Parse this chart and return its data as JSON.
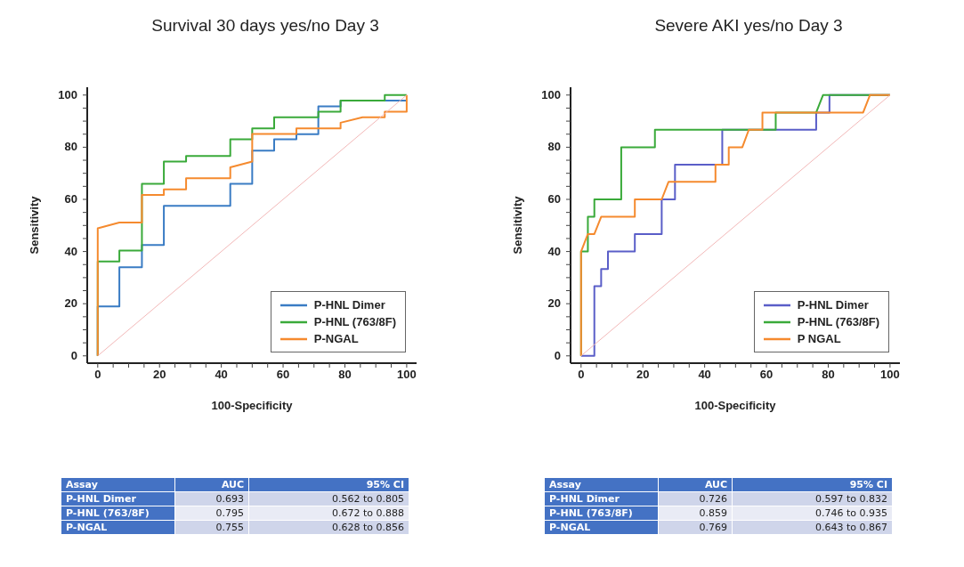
{
  "chart_data": [
    {
      "type": "line",
      "title": "Survival 30 days yes/no Day 3",
      "xlabel": "100-Specificity",
      "ylabel": "Sensitivity",
      "xlim": [
        -3.4,
        103.2
      ],
      "ylim": [
        -2.8,
        103
      ],
      "xticks": [
        0,
        {
          "value": 5,
          "label": null
        },
        {
          "value": 10,
          "label": null
        },
        {
          "value": 15,
          "label": null
        },
        20,
        {
          "value": 25,
          "label": null
        },
        {
          "value": 30,
          "label": null
        },
        {
          "value": 35,
          "label": null
        },
        40,
        {
          "value": 45,
          "label": null
        },
        {
          "value": 50,
          "label": null
        },
        {
          "value": 55,
          "label": null
        },
        60,
        {
          "value": 65,
          "label": null
        },
        {
          "value": 70,
          "label": null
        },
        {
          "value": 75,
          "label": null
        },
        80,
        {
          "value": 85,
          "label": null
        },
        {
          "value": 90,
          "label": null
        },
        {
          "value": 95,
          "label": null
        },
        100
      ],
      "yticks": [
        0,
        {
          "value": 5,
          "label": null
        },
        {
          "value": 10,
          "label": null
        },
        {
          "value": 15,
          "label": null
        },
        20,
        {
          "value": 25,
          "label": null
        },
        {
          "value": 30,
          "label": null
        },
        {
          "value": 35,
          "label": null
        },
        40,
        {
          "value": 45,
          "label": null
        },
        {
          "value": 50,
          "label": null
        },
        {
          "value": 55,
          "label": null
        },
        60,
        {
          "value": 65,
          "label": null
        },
        {
          "value": 70,
          "label": null
        },
        {
          "value": 75,
          "label": null
        },
        80,
        {
          "value": 85,
          "label": null
        },
        {
          "value": 90,
          "label": null
        },
        {
          "value": 95,
          "label": null
        },
        100
      ],
      "grid": false,
      "legend": "bottom right",
      "marker": "none",
      "line_style": "solid",
      "series": [
        {
          "name": "P-HNL Dimer",
          "color": "#3a7cc4",
          "x": [
            0,
            0,
            7,
            7,
            14.3,
            14.3,
            21.4,
            21.4,
            42.9,
            42.9,
            50,
            50,
            57.1,
            57.1,
            64.3,
            64.3,
            71.4,
            71.4,
            78.6,
            78.6,
            100
          ],
          "values": [
            0,
            19,
            19,
            34,
            34,
            42.5,
            42.5,
            57.5,
            57.5,
            66,
            66,
            78.7,
            78.7,
            83,
            83,
            85,
            85,
            95.7,
            95.7,
            97.9,
            97.9
          ]
        },
        {
          "name": "P-HNL (763/8F)",
          "color": "#3aaa3a",
          "x": [
            0,
            0,
            7,
            7,
            14.3,
            14.3,
            21.4,
            21.4,
            28.6,
            28.6,
            42.9,
            42.9,
            50,
            50,
            57.1,
            57.1,
            71.4,
            71.4,
            78.6,
            78.6,
            92.9,
            92.9,
            100
          ],
          "values": [
            0,
            36.2,
            36.2,
            40.4,
            40.4,
            66,
            66,
            74.5,
            74.5,
            76.6,
            76.6,
            83,
            83,
            87.2,
            87.2,
            91.5,
            91.5,
            93.6,
            93.6,
            97.9,
            97.9,
            100,
            100
          ]
        },
        {
          "name": "P-NGAL",
          "color": "#f58a2e",
          "x": [
            0,
            0,
            7,
            14.3,
            14.3,
            21.4,
            21.4,
            28.6,
            28.6,
            42.9,
            42.9,
            50,
            50,
            64.3,
            64.3,
            78.6,
            78.6,
            85.7,
            92.9,
            92.9,
            100,
            100
          ],
          "values": [
            0,
            48.9,
            51.1,
            51.1,
            61.7,
            61.7,
            63.8,
            63.8,
            68.1,
            68.1,
            72.3,
            74.5,
            85.1,
            85.1,
            87.2,
            87.2,
            89.4,
            91.5,
            91.5,
            93.6,
            93.6,
            100
          ]
        },
        {
          "color": "#f2b8b8",
          "x": [
            0,
            100
          ],
          "values": [
            0,
            100
          ]
        }
      ],
      "annotations": [
        "Assay",
        "AUC",
        "95% CI",
        "P-HNL Dimer",
        "0.693",
        "0.562 to 0.805",
        "P-HNL (763/8F)",
        "0.795",
        "0.672 to 0.888",
        "P-NGAL",
        "0.755",
        "0.628 to 0.856"
      ]
    },
    {
      "type": "line",
      "title": "Severe AKI yes/no Day 3",
      "xlabel": "100-Specificity",
      "ylabel": "Sensitivity",
      "xlim": [
        -3.4,
        103.2
      ],
      "ylim": [
        -2.8,
        103
      ],
      "xticks": [
        0,
        {
          "value": 5,
          "label": null
        },
        {
          "value": 10,
          "label": null
        },
        {
          "value": 15,
          "label": null
        },
        20,
        {
          "value": 25,
          "label": null
        },
        {
          "value": 30,
          "label": null
        },
        {
          "value": 35,
          "label": null
        },
        40,
        {
          "value": 45,
          "label": null
        },
        {
          "value": 50,
          "label": null
        },
        {
          "value": 55,
          "label": null
        },
        60,
        {
          "value": 65,
          "label": null
        },
        {
          "value": 70,
          "label": null
        },
        {
          "value": 75,
          "label": null
        },
        80,
        {
          "value": 85,
          "label": null
        },
        {
          "value": 90,
          "label": null
        },
        {
          "value": 95,
          "label": null
        },
        100
      ],
      "yticks": [
        0,
        {
          "value": 5,
          "label": null
        },
        {
          "value": 10,
          "label": null
        },
        {
          "value": 15,
          "label": null
        },
        20,
        {
          "value": 25,
          "label": null
        },
        {
          "value": 30,
          "label": null
        },
        {
          "value": 35,
          "label": null
        },
        40,
        {
          "value": 45,
          "label": null
        },
        {
          "value": 50,
          "label": null
        },
        {
          "value": 55,
          "label": null
        },
        60,
        {
          "value": 65,
          "label": null
        },
        {
          "value": 70,
          "label": null
        },
        {
          "value": 75,
          "label": null
        },
        80,
        {
          "value": 85,
          "label": null
        },
        {
          "value": 90,
          "label": null
        },
        {
          "value": 95,
          "label": null
        },
        100
      ],
      "grid": false,
      "legend": "bottom right",
      "marker": "none",
      "line_style": "solid",
      "series": [
        {
          "name": "P-HNL Dimer",
          "color": "#5a5ec8",
          "x": [
            0,
            4.3,
            4.3,
            6.5,
            6.5,
            8.7,
            8.7,
            17.4,
            17.4,
            26.1,
            26.1,
            30.4,
            30.4,
            45.7,
            45.7,
            76.1,
            76.1,
            80.4,
            80.4,
            100
          ],
          "values": [
            0,
            0,
            26.7,
            26.7,
            33.3,
            33.3,
            40,
            40,
            46.7,
            46.7,
            60,
            60,
            73.3,
            73.3,
            86.7,
            86.7,
            93.3,
            93.3,
            100,
            100
          ]
        },
        {
          "name": "P-HNL (763/8F)",
          "color": "#3aaa3a",
          "x": [
            0,
            0,
            2.2,
            2.2,
            4.3,
            4.3,
            13,
            13,
            23.9,
            23.9,
            63,
            63,
            76.1,
            78.3,
            100
          ],
          "values": [
            0,
            40,
            40,
            53.3,
            53.3,
            60,
            60,
            80,
            80,
            86.7,
            86.7,
            93.3,
            93.3,
            100,
            100
          ]
        },
        {
          "name": "P NGAL",
          "color": "#f58a2e",
          "x": [
            0,
            0,
            2.2,
            4.3,
            6.5,
            17.4,
            17.4,
            26.1,
            28.3,
            43.5,
            43.5,
            47.8,
            47.8,
            52.2,
            54.3,
            58.7,
            58.7,
            91.3,
            93.5,
            100
          ],
          "values": [
            0,
            40,
            46.7,
            46.7,
            53.3,
            53.3,
            60,
            60,
            66.7,
            66.7,
            73.3,
            73.3,
            80,
            80,
            86.7,
            86.7,
            93.3,
            93.3,
            100,
            100
          ]
        },
        {
          "color": "#f2b8b8",
          "x": [
            0,
            100
          ],
          "values": [
            0,
            100
          ]
        }
      ],
      "annotations": [
        "Assay",
        "AUC",
        "95% CI",
        "P-HNL Dimer",
        "0.726",
        "0.597 to 0.832",
        "P-HNL (763/8F)",
        "0.859",
        "0.746 to 0.935",
        "P-NGAL",
        "0.769",
        "0.643 to 0.867"
      ]
    }
  ]
}
